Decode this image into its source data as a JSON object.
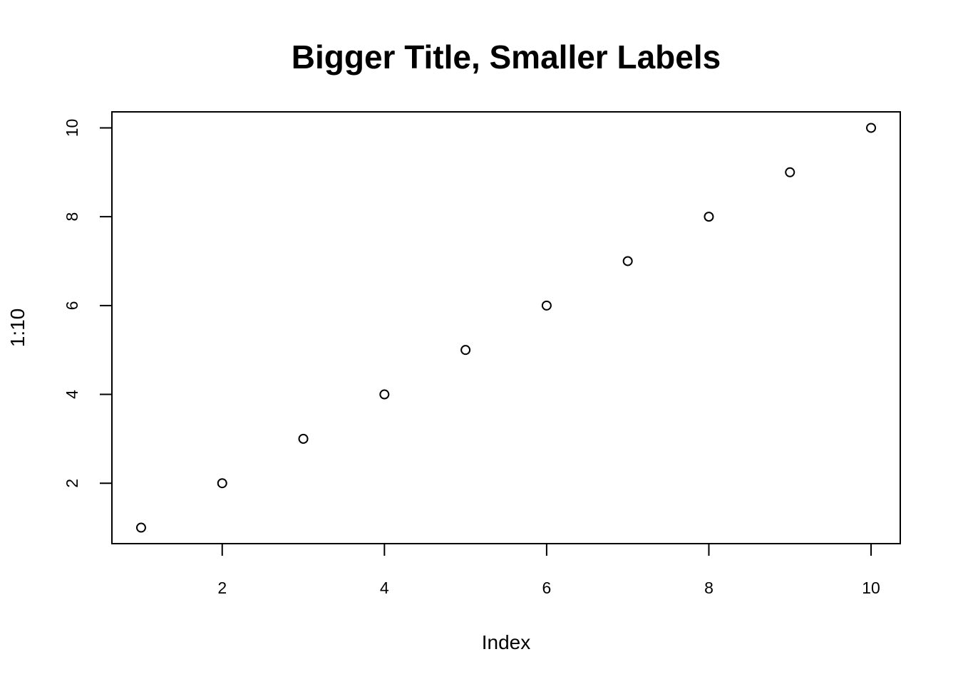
{
  "chart_data": {
    "type": "scatter",
    "title": "Bigger Title, Smaller Labels",
    "xlabel": "Index",
    "ylabel": "1:10",
    "x": [
      1,
      2,
      3,
      4,
      5,
      6,
      7,
      8,
      9,
      10
    ],
    "y": [
      1,
      2,
      3,
      4,
      5,
      6,
      7,
      8,
      9,
      10
    ],
    "xlim": [
      0.64,
      10.36
    ],
    "ylim": [
      0.64,
      10.36
    ],
    "x_ticks": [
      2,
      4,
      6,
      8,
      10
    ],
    "y_ticks": [
      2,
      4,
      6,
      8,
      10
    ],
    "x_tick_labels": [
      "2",
      "4",
      "6",
      "8",
      "10"
    ],
    "y_tick_labels": [
      "2",
      "4",
      "6",
      "8",
      "10"
    ],
    "marker": "open-circle",
    "grid": false,
    "legend": "none",
    "colors": {
      "background": "#ffffff",
      "foreground": "#000000"
    }
  }
}
